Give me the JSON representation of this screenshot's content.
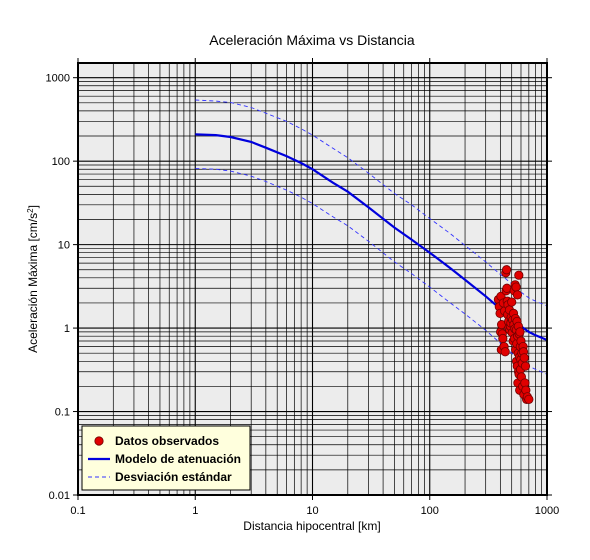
{
  "chart_data": {
    "type": "scatter",
    "title": "Aceleración Máxima vs Distancia",
    "xlabel": "Distancia hipocentral [km]",
    "ylabel": {
      "main": "Aceleración Máxima [cm/s",
      "sup": "2",
      "close": "]"
    },
    "x_scale": "log",
    "y_scale": "log",
    "xlim": [
      0.1,
      1000
    ],
    "ylim": [
      0.01,
      1500
    ],
    "grid": true,
    "legend_position": "bottom-left",
    "x_ticks": [
      {
        "value": 0.1,
        "label": "0.1"
      },
      {
        "value": 1,
        "label": "1"
      },
      {
        "value": 10,
        "label": "10"
      },
      {
        "value": 100,
        "label": "100"
      },
      {
        "value": 1000,
        "label": "1000"
      }
    ],
    "y_ticks": [
      {
        "value": 0.01,
        "label": "0.01"
      },
      {
        "value": 0.1,
        "label": "0.1"
      },
      {
        "value": 1,
        "label": "1"
      },
      {
        "value": 10,
        "label": "10"
      },
      {
        "value": 100,
        "label": "100"
      },
      {
        "value": 1000,
        "label": "1000"
      }
    ],
    "colors": {
      "plot_background": "#ececec",
      "grid": "#000000",
      "observed": "#e00000",
      "model": "#0000dd",
      "std": "#3333ff",
      "legend_background": "#ffffdd"
    },
    "series": [
      {
        "name": "Datos observados",
        "kind": "points",
        "points": [
          [
            385,
            2.2
          ],
          [
            392,
            1.8
          ],
          [
            398,
            1.5
          ],
          [
            402,
            0.9
          ],
          [
            405,
            2.4
          ],
          [
            408,
            0.55
          ],
          [
            410,
            1.1
          ],
          [
            415,
            0.85
          ],
          [
            420,
            0.75
          ],
          [
            425,
            2.0
          ],
          [
            430,
            0.6
          ],
          [
            435,
            1.6
          ],
          [
            440,
            0.52
          ],
          [
            445,
            4.6
          ],
          [
            448,
            2.8
          ],
          [
            452,
            5.0
          ],
          [
            455,
            3.0
          ],
          [
            458,
            2.1
          ],
          [
            462,
            1.45
          ],
          [
            465,
            1.9
          ],
          [
            470,
            1.2
          ],
          [
            472,
            1.0
          ],
          [
            478,
            1.65
          ],
          [
            482,
            0.95
          ],
          [
            488,
            1.05
          ],
          [
            492,
            1.15
          ],
          [
            495,
            1.35
          ],
          [
            500,
            2.05
          ],
          [
            505,
            0.88
          ],
          [
            510,
            1.25
          ],
          [
            515,
            0.7
          ],
          [
            518,
            1.5
          ],
          [
            522,
            1.1
          ],
          [
            525,
            2.8
          ],
          [
            528,
            0.75
          ],
          [
            532,
            0.98
          ],
          [
            535,
            3.3
          ],
          [
            538,
            1.3
          ],
          [
            540,
            0.55
          ],
          [
            545,
            3.1
          ],
          [
            548,
            0.95
          ],
          [
            550,
            0.4
          ],
          [
            552,
            0.65
          ],
          [
            555,
            1.2
          ],
          [
            558,
            0.35
          ],
          [
            560,
            2.5
          ],
          [
            562,
            0.8
          ],
          [
            565,
            0.22
          ],
          [
            568,
            0.5
          ],
          [
            570,
            1.05
          ],
          [
            572,
            0.3
          ],
          [
            575,
            4.3
          ],
          [
            578,
            0.28
          ],
          [
            580,
            0.85
          ],
          [
            583,
            0.45
          ],
          [
            585,
            0.18
          ],
          [
            588,
            0.9
          ],
          [
            592,
            0.6
          ],
          [
            595,
            0.32
          ],
          [
            598,
            0.42
          ],
          [
            600,
            0.7
          ],
          [
            605,
            0.26
          ],
          [
            610,
            0.5
          ],
          [
            615,
            0.38
          ],
          [
            620,
            0.2
          ],
          [
            625,
            0.6
          ],
          [
            630,
            0.52
          ],
          [
            635,
            0.16
          ],
          [
            640,
            0.44
          ],
          [
            648,
            0.22
          ],
          [
            655,
            0.35
          ],
          [
            660,
            0.18
          ],
          [
            670,
            0.14
          ],
          [
            680,
            0.15
          ],
          [
            700,
            0.14
          ]
        ]
      },
      {
        "name": "Modelo de atenuación",
        "kind": "line",
        "points": [
          [
            1,
            210
          ],
          [
            1.5,
            205
          ],
          [
            2,
            195
          ],
          [
            3,
            170
          ],
          [
            4,
            145
          ],
          [
            6,
            115
          ],
          [
            8,
            95
          ],
          [
            10,
            80
          ],
          [
            15,
            55
          ],
          [
            20,
            43
          ],
          [
            30,
            28
          ],
          [
            50,
            16
          ],
          [
            70,
            11.5
          ],
          [
            100,
            8
          ],
          [
            150,
            5.2
          ],
          [
            200,
            3.8
          ],
          [
            300,
            2.4
          ],
          [
            400,
            1.7
          ],
          [
            500,
            1.3
          ],
          [
            600,
            1.05
          ],
          [
            700,
            0.9
          ],
          [
            800,
            0.82
          ],
          [
            1000,
            0.72
          ]
        ]
      },
      {
        "name": "Desviación estándar",
        "kind": "dashed",
        "points": [
          [
            1,
            540
          ],
          [
            1.5,
            525
          ],
          [
            2,
            505
          ],
          [
            3,
            440
          ],
          [
            4,
            375
          ],
          [
            6,
            300
          ],
          [
            8,
            245
          ],
          [
            10,
            205
          ],
          [
            15,
            142
          ],
          [
            20,
            110
          ],
          [
            30,
            72
          ],
          [
            50,
            41
          ],
          [
            70,
            30
          ],
          [
            100,
            20.5
          ],
          [
            150,
            13.5
          ],
          [
            200,
            9.8
          ],
          [
            300,
            6.2
          ],
          [
            400,
            4.4
          ],
          [
            500,
            3.4
          ],
          [
            600,
            2.7
          ],
          [
            700,
            2.3
          ],
          [
            800,
            2.1
          ],
          [
            1000,
            1.85
          ]
        ]
      },
      {
        "name": "",
        "kind": "dashed",
        "legend": false,
        "points": [
          [
            1,
            82
          ],
          [
            1.5,
            80
          ],
          [
            2,
            76
          ],
          [
            3,
            66
          ],
          [
            4,
            57
          ],
          [
            6,
            45
          ],
          [
            8,
            37
          ],
          [
            10,
            31
          ],
          [
            15,
            21.5
          ],
          [
            20,
            16.8
          ],
          [
            30,
            11
          ],
          [
            50,
            6.2
          ],
          [
            70,
            4.5
          ],
          [
            100,
            3.1
          ],
          [
            150,
            2.0
          ],
          [
            200,
            1.48
          ],
          [
            300,
            0.94
          ],
          [
            400,
            0.66
          ],
          [
            500,
            0.5
          ],
          [
            600,
            0.41
          ],
          [
            700,
            0.35
          ],
          [
            800,
            0.32
          ],
          [
            1000,
            0.28
          ]
        ]
      }
    ]
  }
}
